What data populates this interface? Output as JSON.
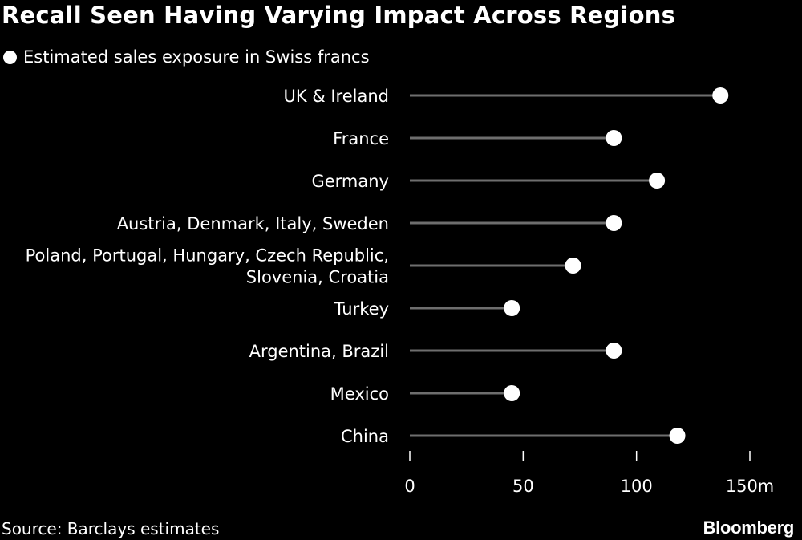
{
  "chart_data": {
    "type": "lollipop",
    "title": "Recall Seen Having Varying Impact Across Regions",
    "legend": "Estimated sales exposure in Swiss francs",
    "categories": [
      [
        "UK & Ireland"
      ],
      [
        "France"
      ],
      [
        "Germany"
      ],
      [
        "Austria, Denmark, Italy, Sweden"
      ],
      [
        "Poland, Portugal, Hungary, Czech Republic,",
        "Slovenia, Croatia"
      ],
      [
        "Turkey"
      ],
      [
        "Argentina, Brazil"
      ],
      [
        "Mexico"
      ],
      [
        "China"
      ]
    ],
    "values": [
      137,
      90,
      109,
      90,
      72,
      45,
      90,
      45,
      118
    ],
    "xlim": [
      0,
      150
    ],
    "ticks": [
      0,
      50,
      100,
      150
    ],
    "tick_labels": [
      "0",
      "50",
      "100",
      "150m"
    ],
    "unit": "m CHF"
  },
  "footer": {
    "source": "Source: Barclays estimates",
    "brand": "Bloomberg"
  },
  "colors": {
    "background": "#000000",
    "text": "#ffffff",
    "stem": "#6e6e6e",
    "dot": "#ffffff"
  }
}
